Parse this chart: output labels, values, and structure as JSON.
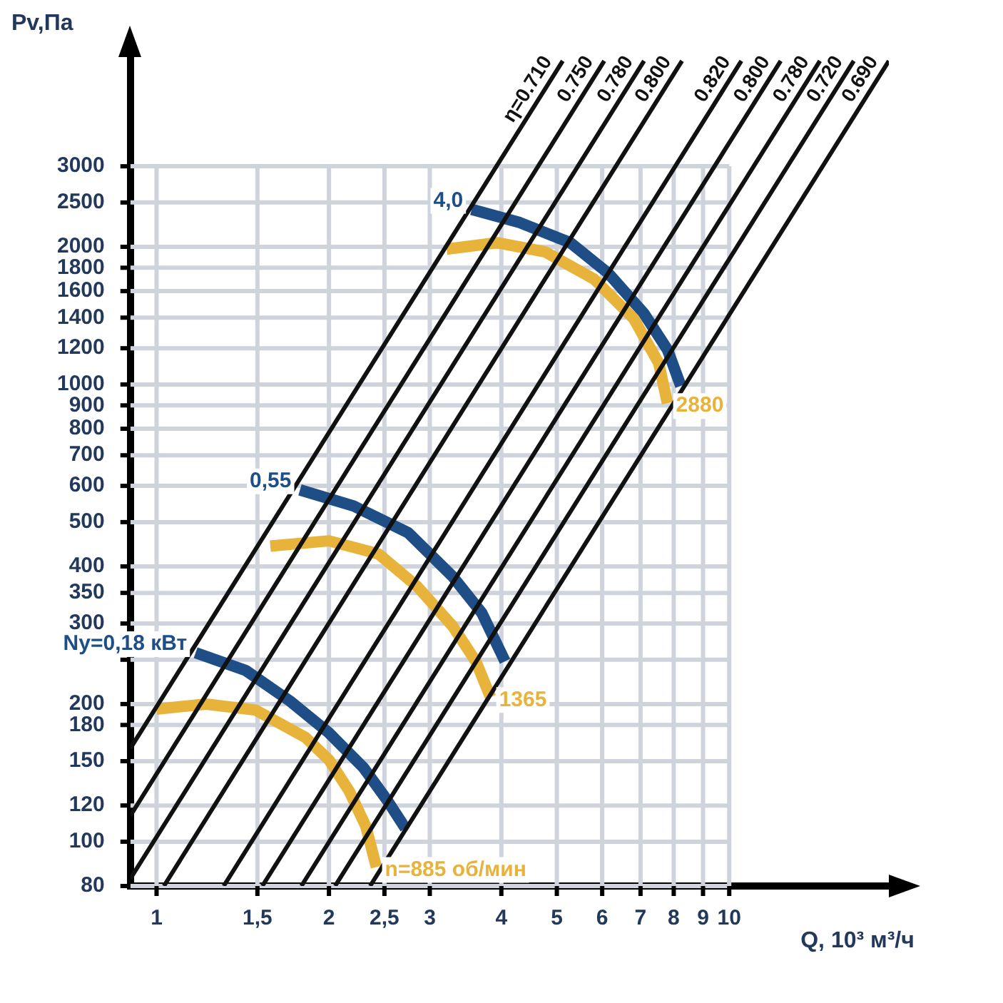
{
  "chart_data": {
    "type": "line",
    "xlabel": "Q, 10³ м³/ч",
    "ylabel": "Pv,Па",
    "log": "xy",
    "grid": true,
    "legend": false,
    "marker": "none",
    "line_style": "solid",
    "xlim": [
      0.9,
      19
    ],
    "ylim": [
      80,
      5200
    ],
    "xticks": [
      1,
      {
        "value": 1.5,
        "label": "1,5"
      },
      2,
      {
        "value": 2.5,
        "label": "2,5"
      },
      3,
      4,
      5,
      6,
      7,
      8,
      9,
      10
    ],
    "yticks": [
      80,
      100,
      120,
      150,
      180,
      200,
      {
        "value": 250,
        "label": null
      },
      300,
      350,
      400,
      500,
      600,
      700,
      800,
      900,
      1000,
      1200,
      1400,
      1600,
      1800,
      2000,
      2500,
      3000
    ],
    "series": [
      {
        "name": "η=0.710",
        "color": "#111111",
        "x": [
          0.9,
          5.12
        ],
        "values": [
          160,
          5100
        ]
      },
      {
        "name": "0.750",
        "color": "#111111",
        "x": [
          0.9,
          6.05
        ],
        "values": [
          114,
          5100
        ]
      },
      {
        "name": "0.780",
        "color": "#111111",
        "x": [
          0.9,
          7.1
        ],
        "values": [
          83,
          5100
        ]
      },
      {
        "name": "0.800",
        "color": "#111111",
        "x": [
          1.03,
          8.27
        ],
        "values": [
          80,
          5100
        ]
      },
      {
        "name": "0.820",
        "color": "#111111",
        "x": [
          1.31,
          10.5
        ],
        "values": [
          80,
          5100
        ]
      },
      {
        "name": "0.800",
        "color": "#111111",
        "x": [
          1.53,
          12.3
        ],
        "values": [
          80,
          5100
        ]
      },
      {
        "name": "0.780",
        "color": "#111111",
        "x": [
          1.79,
          14.4
        ],
        "values": [
          80,
          5100
        ]
      },
      {
        "name": "0.720",
        "color": "#111111",
        "x": [
          2.05,
          16.5
        ],
        "values": [
          80,
          5100
        ]
      },
      {
        "name": "0.690",
        "color": "#111111",
        "x": [
          2.36,
          19
        ],
        "values": [
          80,
          5100
        ]
      },
      {
        "color": "#e8b33a",
        "x": [
          1.0,
          1.22,
          1.49,
          1.82,
          2.0,
          2.17,
          2.32,
          2.42
        ],
        "values": [
          195,
          200,
          194,
          169,
          151,
          129,
          108,
          88
        ]
      },
      {
        "color": "#1f4e86",
        "x": [
          1.17,
          1.43,
          1.71,
          2.0,
          2.3,
          2.53,
          2.72
        ],
        "values": [
          259,
          237,
          203,
          173,
          145,
          123,
          107
        ]
      },
      {
        "color": "#e8b33a",
        "x": [
          1.58,
          2.0,
          2.44,
          2.85,
          3.29,
          3.61,
          3.83
        ],
        "values": [
          443,
          455,
          426,
          362,
          296,
          248,
          207
        ]
      },
      {
        "color": "#1f4e86",
        "x": [
          1.78,
          2.21,
          2.75,
          3.29,
          3.7,
          4.06
        ],
        "values": [
          588,
          542,
          474,
          380,
          316,
          248
        ]
      },
      {
        "color": "#e8b33a",
        "x": [
          3.21,
          3.93,
          4.77,
          5.8,
          6.81,
          7.53,
          7.8
        ],
        "values": [
          1977,
          2042,
          1950,
          1702,
          1393,
          1114,
          910
        ]
      },
      {
        "color": "#1f4e86",
        "x": [
          3.55,
          4.31,
          5.28,
          6.15,
          7.1,
          7.8,
          8.23
        ],
        "values": [
          2415,
          2259,
          2042,
          1750,
          1429,
          1192,
          993
        ]
      }
    ],
    "annotations": [
      {
        "text": "n=885 об/мин",
        "x": 2.42,
        "y": 88
      },
      {
        "text": "1365",
        "x": 3.83,
        "y": 207
      },
      {
        "text": "2880",
        "x": 7.8,
        "y": 910
      },
      {
        "text": "Ny=0,18 кВт",
        "x": 1.17,
        "y": 259
      },
      {
        "text": "0,55",
        "x": 1.78,
        "y": 588
      },
      {
        "text": "4,0",
        "x": 3.55,
        "y": 2415
      }
    ]
  }
}
